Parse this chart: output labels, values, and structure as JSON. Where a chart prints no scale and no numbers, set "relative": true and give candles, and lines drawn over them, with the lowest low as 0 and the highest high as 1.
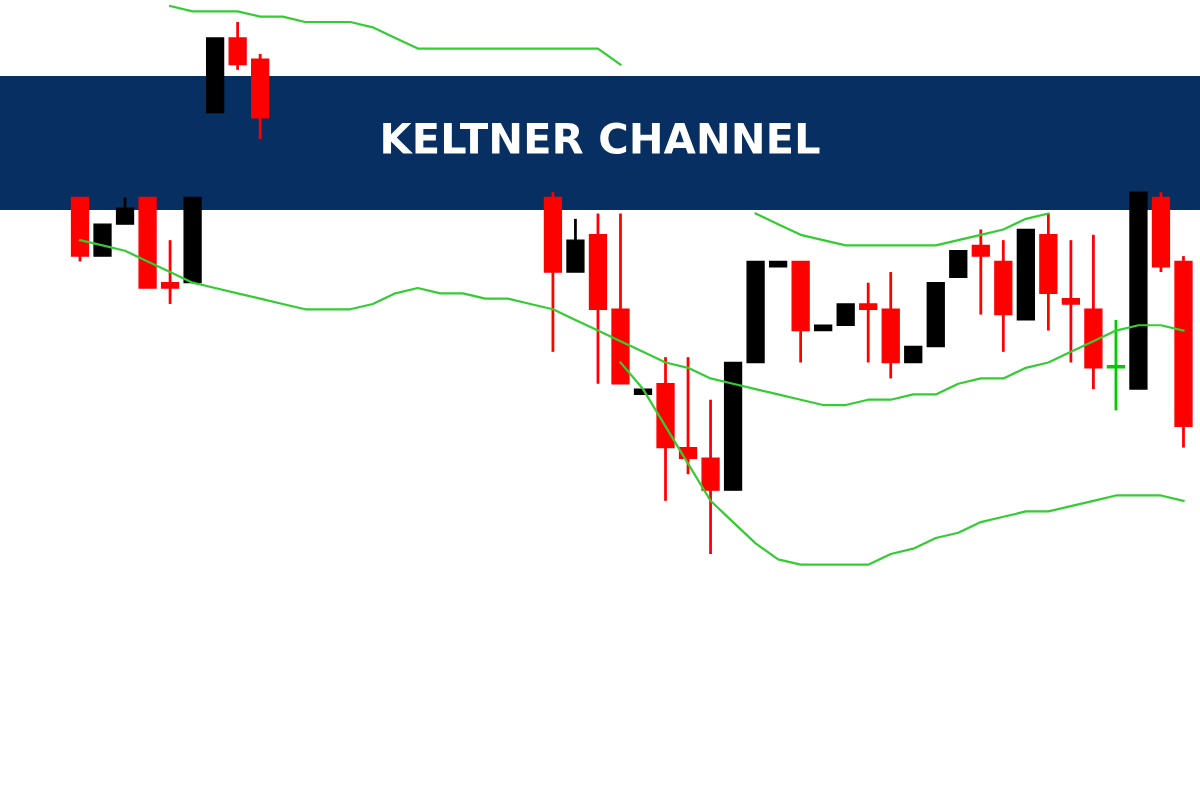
{
  "chart_data": {
    "type": "candlestick",
    "title": "KELTNER CHANNEL",
    "relative": true,
    "categories": [
      null,
      null,
      null,
      null,
      null,
      null,
      null,
      null,
      null,
      null,
      null,
      null,
      null,
      null,
      null,
      null,
      null,
      null,
      null,
      null,
      null,
      null,
      null,
      null,
      null,
      null,
      null,
      null,
      null,
      null,
      null,
      null,
      null,
      null,
      null,
      null,
      null,
      null,
      null,
      null,
      null,
      null,
      null,
      null,
      null,
      null,
      null,
      null,
      null,
      null
    ],
    "ohlc": [
      [
        0.67,
        0.67,
        0.55,
        0.56
      ],
      [
        0.56,
        0.62,
        0.56,
        0.62
      ],
      [
        0.62,
        0.67,
        0.62,
        0.65
      ],
      [
        0.67,
        0.67,
        0.5,
        0.5
      ],
      [
        0.51,
        0.59,
        0.47,
        0.5
      ],
      [
        0.51,
        0.67,
        0.51,
        0.67
      ],
      [
        0.83,
        0.97,
        0.83,
        0.97
      ],
      [
        0.97,
        1.0,
        0.91,
        0.92
      ],
      [
        0.93,
        0.94,
        0.78,
        0.82
      ],
      null,
      null,
      null,
      null,
      null,
      null,
      null,
      null,
      null,
      null,
      null,
      null,
      [
        0.67,
        0.68,
        0.38,
        0.53
      ],
      [
        0.53,
        0.63,
        0.53,
        0.59
      ],
      [
        0.6,
        0.64,
        0.32,
        0.46
      ],
      [
        0.46,
        0.64,
        0.32,
        0.32
      ],
      [
        0.3,
        0.31,
        0.3,
        0.31
      ],
      [
        0.32,
        0.37,
        0.1,
        0.2
      ],
      [
        0.2,
        0.37,
        0.15,
        0.18
      ],
      [
        0.18,
        0.29,
        0.0,
        0.12
      ],
      [
        0.12,
        0.36,
        0.12,
        0.36
      ],
      [
        0.36,
        0.55,
        0.36,
        0.55
      ],
      [
        0.54,
        0.55,
        0.54,
        0.55
      ],
      [
        0.55,
        0.55,
        0.36,
        0.42
      ],
      [
        0.42,
        0.43,
        0.42,
        0.43
      ],
      [
        0.43,
        0.47,
        0.43,
        0.47
      ],
      [
        0.47,
        0.51,
        0.36,
        0.46
      ],
      [
        0.46,
        0.53,
        0.33,
        0.36
      ],
      [
        0.36,
        0.39,
        0.36,
        0.39
      ],
      [
        0.39,
        0.51,
        0.39,
        0.51
      ],
      [
        0.52,
        0.57,
        0.52,
        0.57
      ],
      [
        0.58,
        0.61,
        0.45,
        0.56
      ],
      [
        0.55,
        0.59,
        0.38,
        0.45
      ],
      [
        0.44,
        0.61,
        0.44,
        0.61
      ],
      [
        0.6,
        0.64,
        0.42,
        0.49
      ],
      [
        0.48,
        0.59,
        0.36,
        0.47
      ],
      [
        0.46,
        0.6,
        0.31,
        0.35
      ],
      [
        0.35,
        0.44,
        0.27,
        0.35
      ],
      [
        0.31,
        0.68,
        0.31,
        0.68
      ],
      [
        0.67,
        0.68,
        0.53,
        0.54
      ],
      [
        0.55,
        0.56,
        0.2,
        0.24
      ]
    ],
    "colors": [
      "#ff0000",
      "#000000",
      "#000000",
      "#ff0000",
      "#ff0000",
      "#000000",
      "#000000",
      "#ff0000",
      "#ff0000",
      "#ff0000",
      "#ff0000",
      "#ff0000",
      "#ff0000",
      "#ff0000",
      "#ff0000",
      "#ff0000",
      "#ff0000",
      "#ff0000",
      "#ff0000",
      "#ff0000",
      "#ff0000",
      "#ff0000",
      "#000000",
      "#ff0000",
      "#ff0000",
      "#000000",
      "#ff0000",
      "#ff0000",
      "#ff0000",
      "#000000",
      "#000000",
      "#000000",
      "#ff0000",
      "#000000",
      "#000000",
      "#ff0000",
      "#ff0000",
      "#000000",
      "#000000",
      "#000000",
      "#ff0000",
      "#ff0000",
      "#000000",
      "#ff0000",
      "#ff0000",
      "#ff0000",
      "#00cc00",
      "#000000",
      "#ff0000",
      "#ff0000"
    ],
    "series": [
      {
        "type": "line",
        "color": "#33cc33",
        "values": [
          null,
          null,
          null,
          null,
          1.03,
          1.02,
          1.02,
          1.02,
          1.01,
          1.01,
          1.0,
          1.0,
          1.0,
          0.99,
          0.97,
          0.95,
          0.95,
          0.95,
          0.95,
          0.95,
          0.95,
          0.95,
          0.95,
          0.95,
          0.92,
          null,
          null,
          null,
          null,
          null,
          0.64,
          0.62,
          0.6,
          0.59,
          0.58,
          0.58,
          0.58,
          0.58,
          0.58,
          0.59,
          0.6,
          0.61,
          0.63,
          0.64,
          null,
          null,
          null,
          null,
          null,
          null
        ]
      },
      {
        "type": "line",
        "color": "#33cc33",
        "values": [
          0.59,
          0.58,
          0.57,
          0.55,
          0.53,
          0.51,
          0.5,
          0.49,
          0.48,
          0.47,
          0.46,
          0.46,
          0.46,
          0.47,
          0.49,
          0.5,
          0.49,
          0.49,
          0.48,
          0.48,
          0.47,
          0.46,
          0.44,
          0.42,
          0.4,
          0.38,
          0.36,
          0.35,
          0.33,
          0.32,
          0.31,
          0.3,
          0.29,
          0.28,
          0.28,
          0.29,
          0.29,
          0.3,
          0.3,
          0.32,
          0.33,
          0.33,
          0.35,
          0.36,
          0.38,
          0.4,
          0.42,
          0.43,
          0.43,
          0.42
        ]
      },
      {
        "type": "line",
        "color": "#33cc33",
        "values": [
          null,
          null,
          null,
          null,
          null,
          null,
          null,
          null,
          null,
          null,
          null,
          null,
          null,
          null,
          null,
          null,
          null,
          null,
          null,
          null,
          null,
          null,
          null,
          null,
          0.36,
          0.31,
          0.24,
          0.17,
          0.1,
          0.06,
          0.02,
          -0.01,
          -0.02,
          -0.02,
          -0.02,
          -0.02,
          0.0,
          0.01,
          0.03,
          0.04,
          0.06,
          0.07,
          0.08,
          0.08,
          0.09,
          0.1,
          0.11,
          0.11,
          0.11,
          0.1
        ]
      }
    ]
  }
}
